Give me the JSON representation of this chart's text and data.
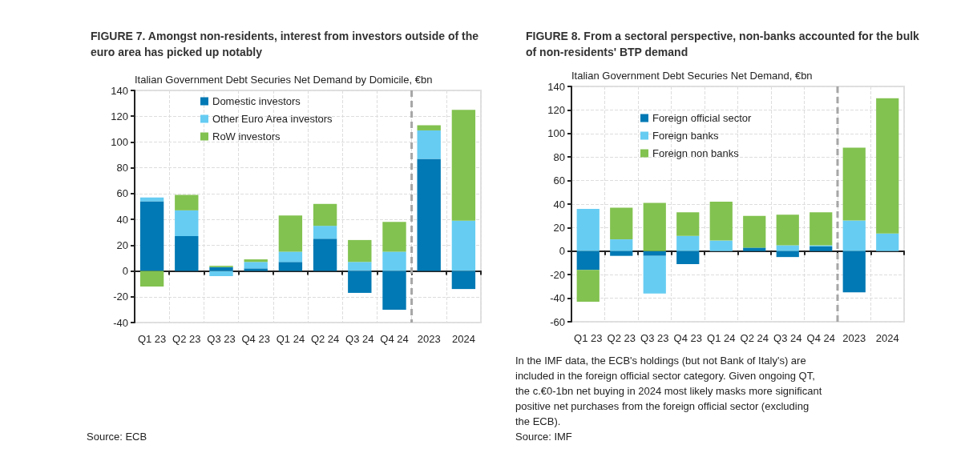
{
  "chart_data": [
    {
      "type": "bar",
      "stacked": true,
      "title": "FIGURE 7. Amongst non-residents, interest from investors outside of the euro area has picked up notably",
      "ylabel": "Italian Government Debt Securies Net Demand by Domicile, €bn",
      "categories": [
        "Q1 23",
        "Q2 23",
        "Q3 23",
        "Q4 23",
        "Q1 24",
        "Q2 24",
        "Q3 24",
        "Q4 24",
        "2023",
        "2024"
      ],
      "series": [
        {
          "name": "Domestic investors",
          "color": "#0079b4",
          "values": [
            54,
            27,
            3,
            2,
            7,
            25,
            -17,
            -30,
            87,
            -14
          ]
        },
        {
          "name": "Other Euro Area investors",
          "color": "#66ccf2",
          "values": [
            3,
            20,
            -4,
            5,
            8,
            10,
            7,
            15,
            22,
            39
          ]
        },
        {
          "name": "RoW investors",
          "color": "#82c250",
          "values": [
            -12,
            12,
            1,
            2,
            28,
            17,
            17,
            23,
            4,
            86
          ]
        }
      ],
      "ylim": [
        -40,
        140
      ],
      "yticks": [
        -40,
        -20,
        0,
        20,
        40,
        60,
        80,
        100,
        120,
        140
      ],
      "grid": true,
      "legend": "top",
      "ref_lines": [
        {
          "axis": "x",
          "value": "2023",
          "color": "#a6a6a6",
          "line_style": "dashed"
        }
      ],
      "annotations": [
        "Source: ECB"
      ]
    },
    {
      "type": "bar",
      "stacked": true,
      "title": "FIGURE 8. From a sectoral perspective, non-banks accounted for the bulk of non-residents' BTP demand",
      "ylabel": "Italian Government Debt Securies Net Demand, €bn",
      "categories": [
        "Q1 23",
        "Q2 23",
        "Q3 23",
        "Q4 23",
        "Q1 24",
        "Q2 24",
        "Q3 24",
        "Q4 24",
        "2023",
        "2024"
      ],
      "series": [
        {
          "name": "Foreign official sector",
          "color": "#0079b4",
          "values": [
            -16,
            -4,
            -4,
            -11,
            0,
            3,
            -5,
            4,
            -35,
            0
          ]
        },
        {
          "name": "Foreign banks",
          "color": "#66ccf2",
          "values": [
            36,
            10,
            -32,
            13,
            9,
            0,
            5,
            1,
            26,
            15
          ]
        },
        {
          "name": "Foreign non banks",
          "color": "#82c250",
          "values": [
            -27,
            27,
            41,
            20,
            33,
            27,
            26,
            28,
            62,
            115
          ]
        }
      ],
      "ylim": [
        -60,
        140
      ],
      "yticks": [
        -60,
        -40,
        -20,
        0,
        20,
        40,
        60,
        80,
        100,
        120,
        140
      ],
      "grid": true,
      "legend": "top",
      "ref_lines": [
        {
          "axis": "x",
          "value": "2023",
          "color": "#a6a6a6",
          "line_style": "dashed"
        }
      ],
      "annotations": [
        "In the IMF data, the ECB's holdings (but not Bank of Italy's) are included in the foreign official sector category. Given ongoing QT, the c.€0-1bn net buying in 2024 most likely masks more significant positive net purchases from the foreign official sector (excluding the ECB).",
        "Source: IMF"
      ]
    }
  ]
}
